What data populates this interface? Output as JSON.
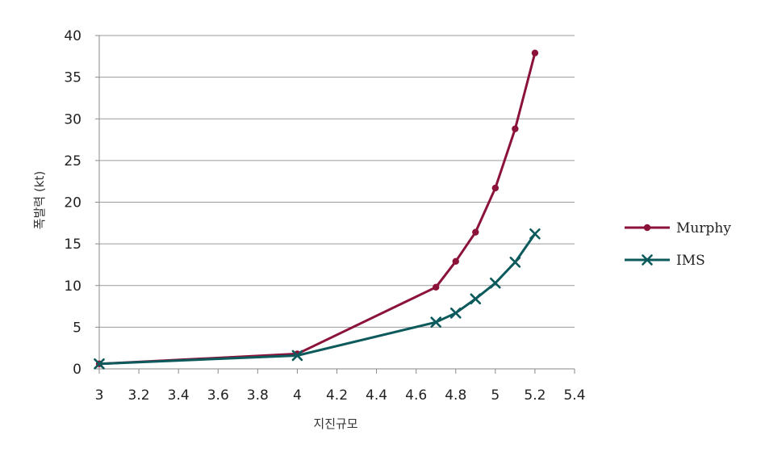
{
  "chart_data": {
    "type": "line",
    "xlabel": "지진규모",
    "ylabel": "폭발력 (kt)",
    "xlim": [
      3,
      5.4
    ],
    "ylim": [
      0,
      40
    ],
    "x_ticks": [
      3,
      3.2,
      3.4,
      3.6,
      3.8,
      4,
      4.2,
      4.4,
      4.6,
      4.8,
      5,
      5.2,
      5.4
    ],
    "x_tick_labels": [
      "3",
      "3.2",
      "3.4",
      "3.6",
      "3.8",
      "4",
      "4.2",
      "4.4",
      "4.6",
      "4.8",
      "5",
      "5.2",
      "5.4"
    ],
    "y_ticks": [
      0,
      5,
      10,
      15,
      20,
      25,
      30,
      35,
      40
    ],
    "y_tick_labels": [
      "0",
      "5",
      "10",
      "15",
      "20",
      "25",
      "30",
      "35",
      "40"
    ],
    "grid": "horizontal",
    "legend_position": "right",
    "series": [
      {
        "name": "Murphy",
        "color": "#8b1238",
        "marker": "circle",
        "x": [
          3,
          4,
          4.7,
          4.8,
          4.9,
          5,
          5.1,
          5.2
        ],
        "y": [
          0.6,
          1.8,
          9.8,
          12.9,
          16.4,
          21.7,
          28.8,
          37.9
        ]
      },
      {
        "name": "IMS",
        "color": "#0c5a5c",
        "marker": "x",
        "x": [
          3,
          4,
          4.7,
          4.8,
          4.9,
          5,
          5.1,
          5.2
        ],
        "y": [
          0.6,
          1.6,
          5.6,
          6.7,
          8.4,
          10.3,
          12.8,
          16.2
        ]
      }
    ]
  }
}
